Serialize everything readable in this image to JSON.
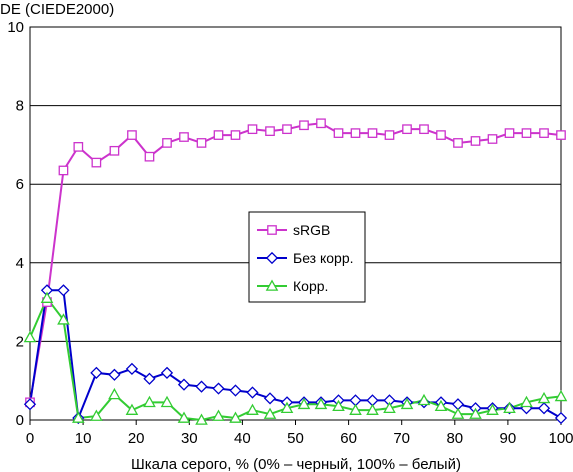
{
  "chart_data": {
    "type": "line",
    "ylabel": "DE (CIEDE2000)",
    "xlabel": "Шкала серого, % (0% – черный, 100% – белый)",
    "xlim": [
      0,
      100
    ],
    "ylim": [
      0,
      10
    ],
    "xticks": [
      0,
      10,
      20,
      30,
      40,
      50,
      60,
      70,
      80,
      90,
      100
    ],
    "yticks": [
      0,
      2,
      4,
      6,
      8,
      10
    ],
    "grid": "horizontal",
    "legend_position": "center-right",
    "x": [
      0,
      3.2,
      6.3,
      9.1,
      12.5,
      15.9,
      19.2,
      22.5,
      25.8,
      29.0,
      32.3,
      35.5,
      38.7,
      41.9,
      45.2,
      48.4,
      51.6,
      54.8,
      58.1,
      61.3,
      64.5,
      67.7,
      71.0,
      74.2,
      77.4,
      80.6,
      83.9,
      87.1,
      90.3,
      93.5,
      96.8,
      100
    ],
    "series": [
      {
        "name": "sRGB",
        "color": "#cc33cc",
        "marker": "square",
        "values": [
          0.45,
          3.0,
          6.35,
          6.95,
          6.55,
          6.85,
          7.25,
          6.7,
          7.05,
          7.2,
          7.05,
          7.25,
          7.25,
          7.4,
          7.35,
          7.4,
          7.5,
          7.55,
          7.3,
          7.3,
          7.3,
          7.25,
          7.4,
          7.4,
          7.25,
          7.05,
          7.1,
          7.15,
          7.3,
          7.3,
          7.3,
          7.25
        ]
      },
      {
        "name": "Без корр.",
        "color": "#0000cc",
        "marker": "diamond",
        "values": [
          0.4,
          3.3,
          3.3,
          0.05,
          1.2,
          1.15,
          1.3,
          1.05,
          1.2,
          0.9,
          0.85,
          0.8,
          0.75,
          0.7,
          0.55,
          0.45,
          0.45,
          0.45,
          0.5,
          0.5,
          0.5,
          0.5,
          0.45,
          0.45,
          0.45,
          0.4,
          0.3,
          0.3,
          0.3,
          0.3,
          0.3,
          0.05
        ]
      },
      {
        "name": "Корр.",
        "color": "#33cc33",
        "marker": "triangle",
        "values": [
          2.1,
          3.1,
          2.55,
          0.05,
          0.1,
          0.65,
          0.25,
          0.45,
          0.45,
          0.05,
          0.0,
          0.1,
          0.05,
          0.25,
          0.15,
          0.3,
          0.4,
          0.4,
          0.35,
          0.25,
          0.25,
          0.3,
          0.4,
          0.5,
          0.35,
          0.15,
          0.15,
          0.25,
          0.3,
          0.45,
          0.55,
          0.6
        ]
      }
    ]
  }
}
